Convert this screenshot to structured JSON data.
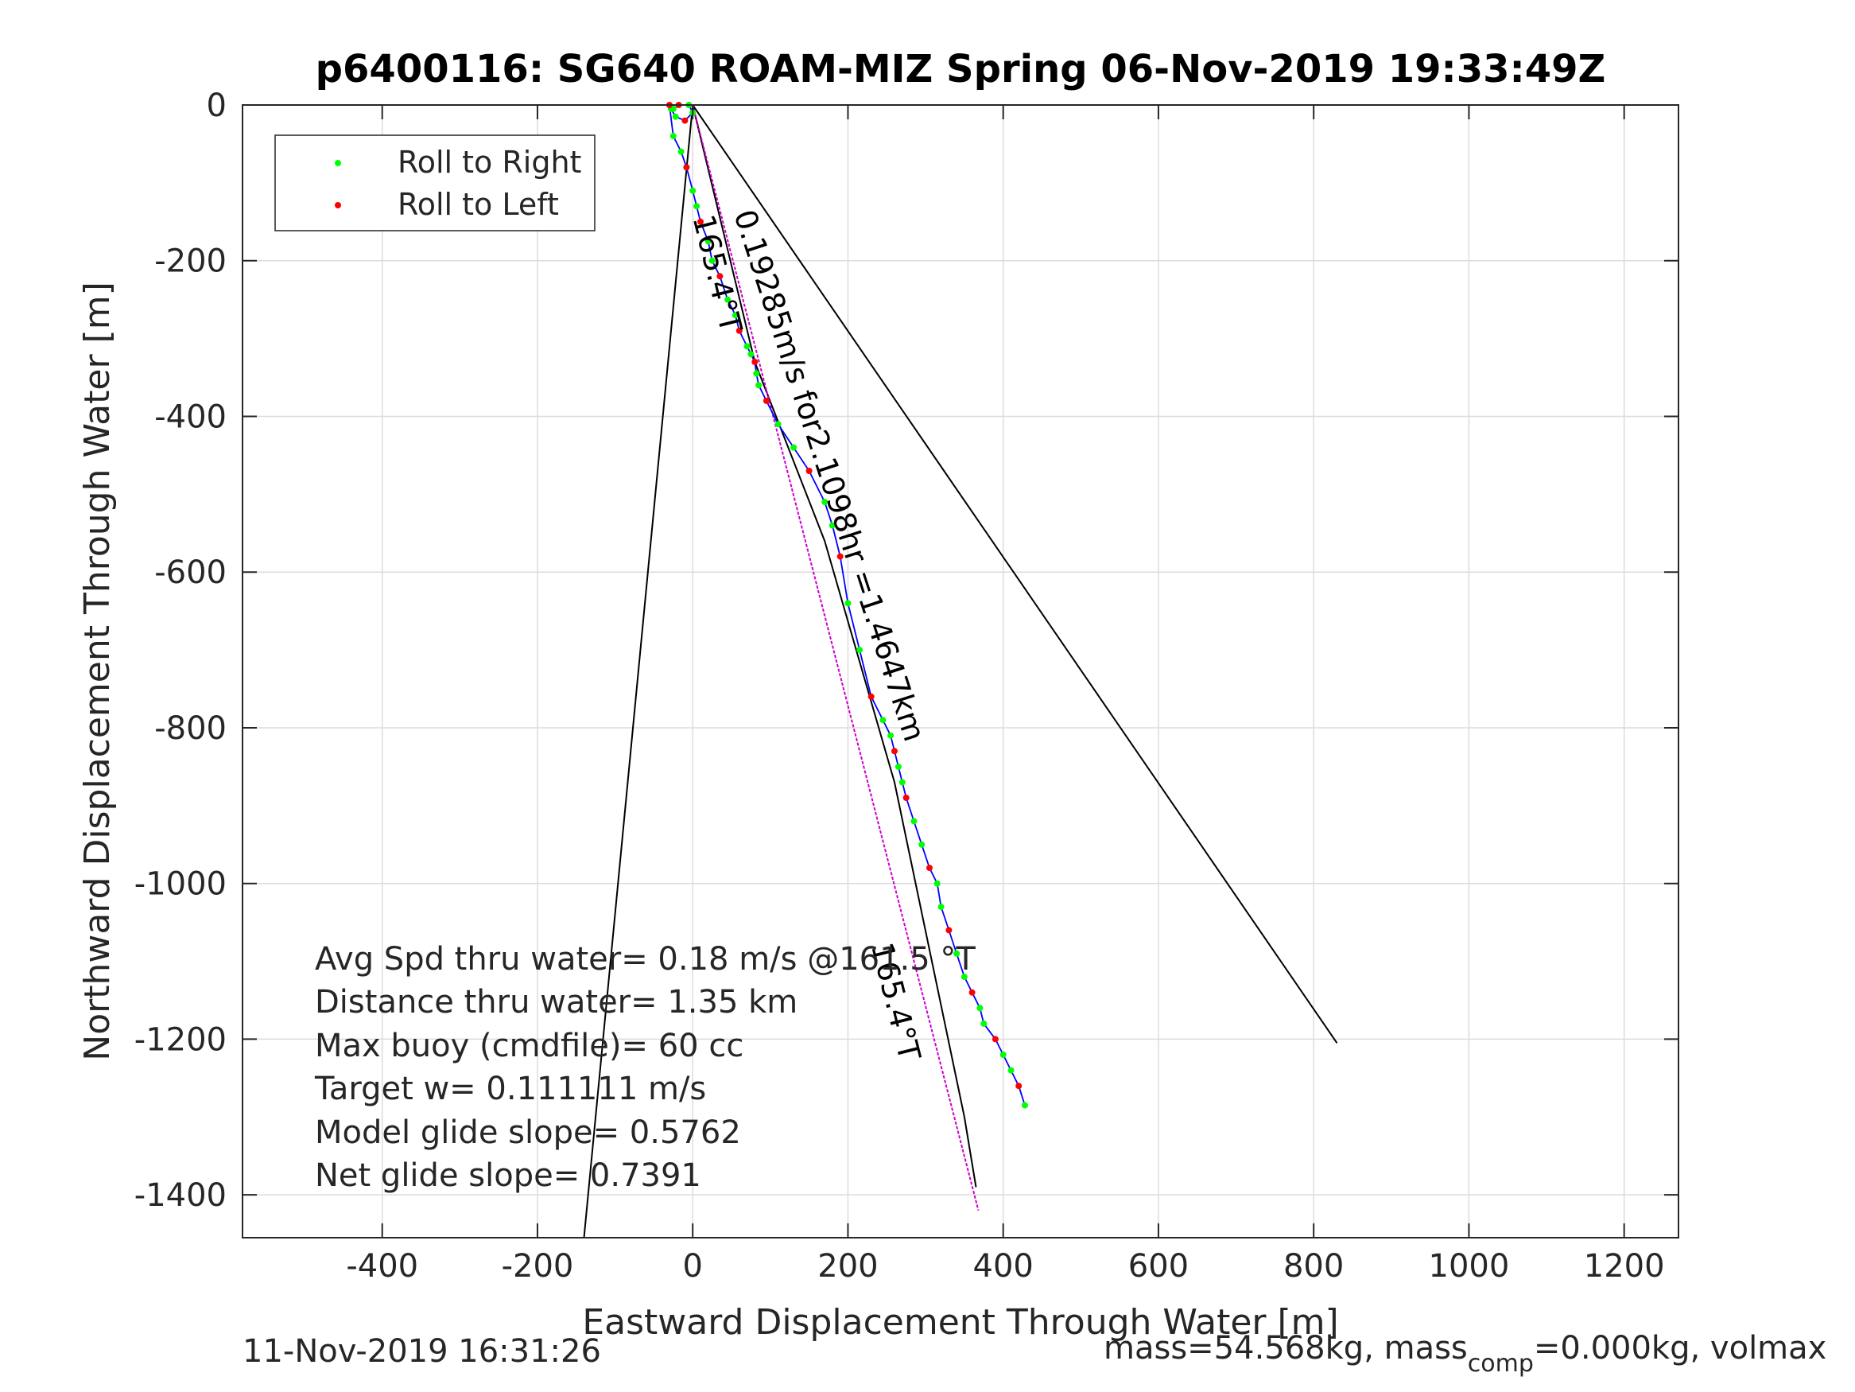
{
  "chart_data": {
    "type": "line",
    "title": "p6400116: SG640 ROAM-MIZ Spring 06-Nov-2019 19:33:49Z",
    "xlabel": "Eastward Displacement Through Water [m]",
    "ylabel": "Northward Displacement Through Water [m]",
    "xlim": [
      -580,
      1270
    ],
    "ylim": [
      -1455,
      0
    ],
    "grid": true,
    "x_ticks": [
      -400,
      -200,
      0,
      200,
      400,
      600,
      800,
      1000,
      1200
    ],
    "y_ticks": [
      0,
      -200,
      -400,
      -600,
      -800,
      -1000,
      -1200,
      -1400
    ],
    "legend": {
      "placement": "top-left",
      "entries": [
        {
          "label": "Roll to Right",
          "color": "#00ff00"
        },
        {
          "label": "Roll to Left",
          "color": "#ff0000"
        }
      ]
    },
    "series": [
      {
        "color": "#0000ff",
        "x": [
          -25,
          -18,
          -5,
          0,
          -10,
          -22,
          -28,
          -30,
          -25,
          -15,
          -8,
          0,
          5,
          10,
          20,
          25,
          35,
          45,
          55,
          60,
          70,
          75,
          80,
          82,
          85,
          95,
          110,
          130,
          150,
          170,
          180,
          190,
          200,
          215,
          230,
          245,
          255,
          260,
          265,
          270,
          275,
          285,
          295,
          305,
          315,
          320,
          330,
          340,
          350,
          360,
          370,
          375,
          390,
          400,
          410,
          420,
          428
        ],
        "y": [
          -5,
          0,
          0,
          -10,
          -20,
          -15,
          -5,
          0,
          -40,
          -60,
          -80,
          -110,
          -130,
          -150,
          -175,
          -200,
          -220,
          -250,
          -270,
          -290,
          -310,
          -320,
          -330,
          -345,
          -360,
          -380,
          -410,
          -440,
          -470,
          -510,
          -540,
          -580,
          -640,
          -700,
          -760,
          -790,
          -810,
          -830,
          -850,
          -870,
          -890,
          -920,
          -950,
          -980,
          -1000,
          -1030,
          -1060,
          -1090,
          -1120,
          -1140,
          -1160,
          -1180,
          -1200,
          -1220,
          -1240,
          -1260,
          -1285
        ]
      },
      {
        "color": "#cc00cc",
        "x": [
          0,
          368
        ],
        "y": [
          0,
          -1420
        ]
      },
      {
        "color": "#000000",
        "x": [
          0,
          80,
          170,
          260,
          350,
          365
        ],
        "y": [
          0,
          -330,
          -560,
          -870,
          -1300,
          -1390
        ]
      },
      {
        "color": "#000000",
        "x": [
          0,
          -140
        ],
        "y": [
          0,
          -1455
        ]
      },
      {
        "color": "#000000",
        "x": [
          0,
          830
        ],
        "y": [
          0,
          -1205
        ]
      }
    ],
    "annotations": [
      {
        "text": "0.19285m/s for2.1098hr =1.4647km",
        "x": 53,
        "y": -140,
        "rotation": 72
      },
      {
        "text": "165.4°T",
        "x": 0,
        "y": -145,
        "rotation": 76
      },
      {
        "text": "165.4°T",
        "x": 230,
        "y": -1080,
        "rotation": 76
      }
    ],
    "stats": [
      "Avg Spd thru water=  0.18 m/s @161.5 °T",
      "Distance thru water=  1.35 km",
      "Max buoy (cmdfile)= 60 cc",
      "Target w= 0.111111 m/s",
      "Model glide slope= 0.5762",
      "Net glide slope= 0.7391"
    ]
  },
  "footer": {
    "timestamp": "11-Nov-2019 16:31:26",
    "mass_prefix": "mass=54.568kg, mass",
    "mass_sub": "comp",
    "mass_suffix": "=0.000kg, volmax"
  }
}
